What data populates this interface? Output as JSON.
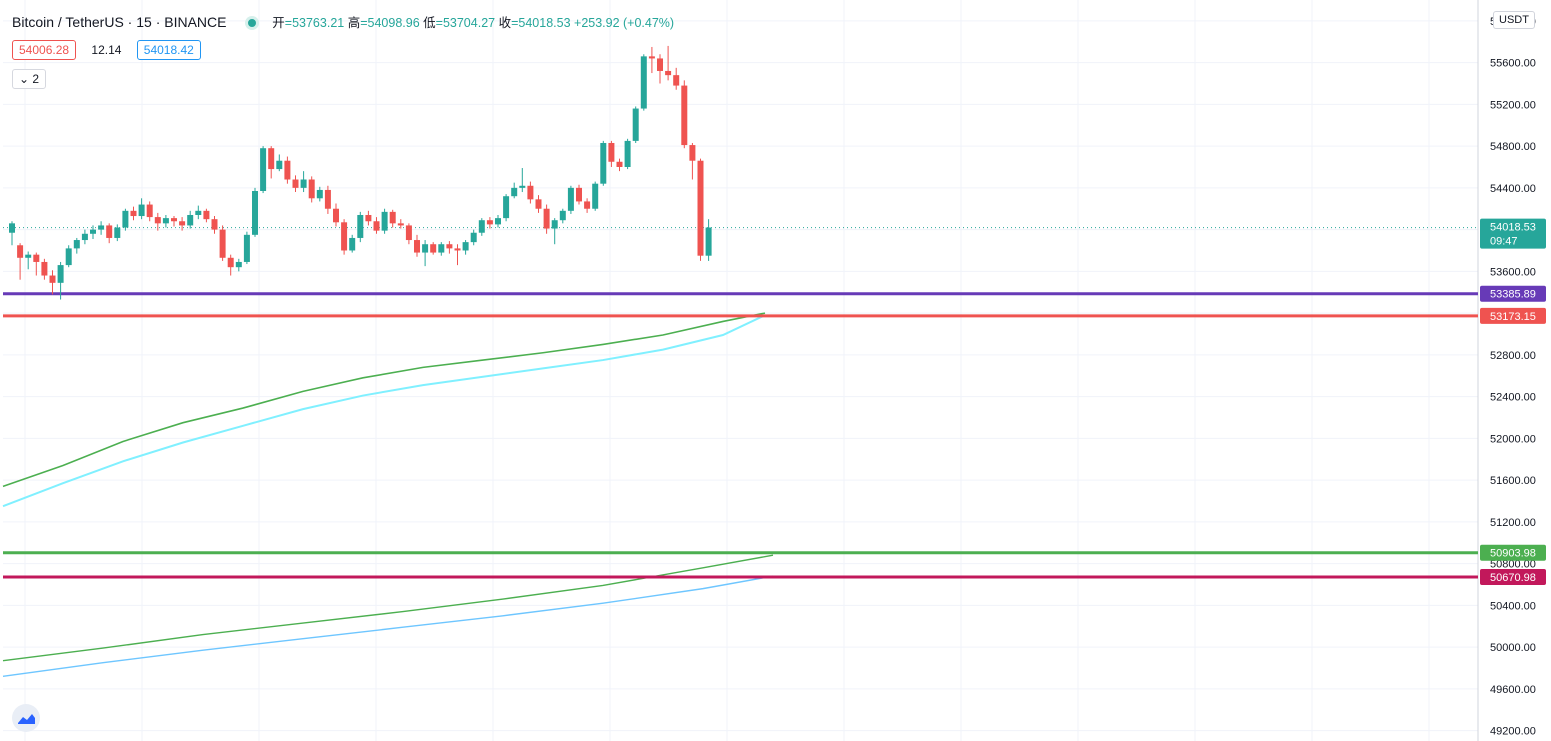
{
  "header": {
    "symbol": "Bitcoin / TetherUS · 15 · BINANCE",
    "open_label": "开",
    "open": "=53763.21",
    "high_label": "高",
    "high": "=54098.96",
    "low_label": "低",
    "low": "=53704.27",
    "close_label": "收",
    "close": "=54018.53",
    "change": "+253.92 (+0.47%)"
  },
  "quote": {
    "bid": "54006.28",
    "spread": "12.14",
    "ask": "54018.42"
  },
  "indicators_toggle": "2",
  "currency": "USDT",
  "colors": {
    "up": "#26a69a",
    "down": "#ef5350",
    "grid": "#f0f3fa",
    "ema_green": "#4caf50",
    "ema_cyan": "#80f0ff",
    "ma_blue": "#6ec6ff",
    "line_purple": "#673ab7",
    "line_red": "#ef5350",
    "line_green": "#4caf50",
    "line_magenta": "#c2185b"
  },
  "chart_data": {
    "type": "candlestick",
    "ylim": [
      49100,
      56200
    ],
    "y_ticks": [
      49200,
      49600,
      50000,
      50400,
      50800,
      51200,
      51600,
      52000,
      52400,
      52800,
      53200,
      53600,
      54000,
      54400,
      54800,
      55200,
      55600,
      56000
    ],
    "candles": [
      [
        53970,
        54060,
        53850,
        54080
      ],
      [
        53850,
        53730,
        53520,
        53870
      ],
      [
        53730,
        53760,
        53620,
        53790
      ],
      [
        53760,
        53690,
        53560,
        53780
      ],
      [
        53690,
        53560,
        53520,
        53720
      ],
      [
        53560,
        53490,
        53380,
        53610
      ],
      [
        53490,
        53660,
        53330,
        53690
      ],
      [
        53660,
        53820,
        53640,
        53850
      ],
      [
        53820,
        53900,
        53770,
        53920
      ],
      [
        53900,
        53960,
        53860,
        54000
      ],
      [
        53960,
        54000,
        53910,
        54040
      ],
      [
        54000,
        54040,
        53950,
        54080
      ],
      [
        54040,
        53920,
        53870,
        54060
      ],
      [
        53920,
        54020,
        53890,
        54050
      ],
      [
        54020,
        54180,
        53990,
        54200
      ],
      [
        54180,
        54130,
        54090,
        54220
      ],
      [
        54130,
        54240,
        54100,
        54300
      ],
      [
        54240,
        54120,
        54080,
        54270
      ],
      [
        54120,
        54060,
        53990,
        54160
      ],
      [
        54060,
        54110,
        54020,
        54140
      ],
      [
        54110,
        54080,
        54030,
        54130
      ],
      [
        54080,
        54040,
        53990,
        54120
      ],
      [
        54040,
        54140,
        54010,
        54180
      ],
      [
        54140,
        54180,
        54100,
        54230
      ],
      [
        54180,
        54100,
        54070,
        54200
      ],
      [
        54100,
        54000,
        53960,
        54130
      ],
      [
        54000,
        53730,
        53700,
        54040
      ],
      [
        53730,
        53640,
        53560,
        53760
      ],
      [
        53640,
        53690,
        53600,
        53720
      ],
      [
        53690,
        53950,
        53670,
        53980
      ],
      [
        53950,
        54370,
        53930,
        54400
      ],
      [
        54370,
        54780,
        54350,
        54800
      ],
      [
        54780,
        54580,
        54490,
        54800
      ],
      [
        54580,
        54660,
        54560,
        54720
      ],
      [
        54660,
        54480,
        54440,
        54700
      ],
      [
        54480,
        54400,
        54360,
        54520
      ],
      [
        54400,
        54480,
        54360,
        54560
      ],
      [
        54480,
        54300,
        54260,
        54510
      ],
      [
        54300,
        54380,
        54270,
        54410
      ],
      [
        54380,
        54200,
        54150,
        54420
      ],
      [
        54200,
        54070,
        54030,
        54250
      ],
      [
        54070,
        53800,
        53760,
        54100
      ],
      [
        53800,
        53920,
        53780,
        53950
      ],
      [
        53920,
        54140,
        53880,
        54170
      ],
      [
        54140,
        54080,
        54040,
        54180
      ],
      [
        54080,
        53990,
        53960,
        54120
      ],
      [
        53990,
        54170,
        53960,
        54200
      ],
      [
        54170,
        54060,
        54020,
        54190
      ],
      [
        54060,
        54040,
        54010,
        54100
      ],
      [
        54040,
        53900,
        53860,
        54060
      ],
      [
        53900,
        53780,
        53740,
        53950
      ],
      [
        53780,
        53860,
        53650,
        53900
      ],
      [
        53860,
        53780,
        53760,
        53880
      ],
      [
        53780,
        53860,
        53750,
        53880
      ],
      [
        53860,
        53820,
        53770,
        53890
      ],
      [
        53820,
        53800,
        53660,
        53860
      ],
      [
        53800,
        53880,
        53760,
        53900
      ],
      [
        53880,
        53970,
        53850,
        54000
      ],
      [
        53970,
        54090,
        53940,
        54110
      ],
      [
        54090,
        54050,
        54010,
        54120
      ],
      [
        54050,
        54110,
        54020,
        54140
      ],
      [
        54110,
        54320,
        54080,
        54340
      ],
      [
        54320,
        54400,
        54300,
        54450
      ],
      [
        54400,
        54420,
        54360,
        54590
      ],
      [
        54420,
        54290,
        54250,
        54460
      ],
      [
        54290,
        54200,
        54160,
        54330
      ],
      [
        54200,
        54010,
        53960,
        54240
      ],
      [
        54010,
        54090,
        53860,
        54110
      ],
      [
        54090,
        54180,
        54060,
        54200
      ],
      [
        54180,
        54400,
        54150,
        54420
      ],
      [
        54400,
        54270,
        54240,
        54430
      ],
      [
        54270,
        54200,
        54160,
        54300
      ],
      [
        54200,
        54440,
        54180,
        54460
      ],
      [
        54440,
        54830,
        54420,
        54850
      ],
      [
        54830,
        54650,
        54600,
        54850
      ],
      [
        54650,
        54600,
        54560,
        54680
      ],
      [
        54600,
        54850,
        54580,
        54870
      ],
      [
        54850,
        55160,
        54830,
        55180
      ],
      [
        55160,
        55660,
        55140,
        55680
      ],
      [
        55660,
        55640,
        55500,
        55750
      ],
      [
        55640,
        55520,
        55400,
        55680
      ],
      [
        55520,
        55480,
        55430,
        55760
      ],
      [
        55480,
        55380,
        55340,
        55550
      ],
      [
        55380,
        54810,
        54780,
        55430
      ],
      [
        54810,
        54660,
        54480,
        54830
      ],
      [
        54660,
        53750,
        53700,
        54680
      ],
      [
        53750,
        54020,
        53700,
        54100
      ]
    ],
    "ema_green": [
      [
        0,
        51540
      ],
      [
        60,
        51740
      ],
      [
        120,
        51970
      ],
      [
        180,
        52150
      ],
      [
        240,
        52290
      ],
      [
        300,
        52450
      ],
      [
        360,
        52580
      ],
      [
        420,
        52680
      ],
      [
        480,
        52750
      ],
      [
        540,
        52820
      ],
      [
        600,
        52900
      ],
      [
        660,
        52990
      ],
      [
        720,
        53120
      ],
      [
        762,
        53200
      ]
    ],
    "ema_cyan": [
      [
        0,
        51350
      ],
      [
        60,
        51570
      ],
      [
        120,
        51780
      ],
      [
        180,
        51960
      ],
      [
        240,
        52120
      ],
      [
        300,
        52280
      ],
      [
        360,
        52410
      ],
      [
        420,
        52510
      ],
      [
        480,
        52590
      ],
      [
        540,
        52670
      ],
      [
        600,
        52750
      ],
      [
        660,
        52850
      ],
      [
        720,
        52990
      ],
      [
        762,
        53180
      ]
    ],
    "ma_green": [
      [
        0,
        49870
      ],
      [
        100,
        49990
      ],
      [
        200,
        50120
      ],
      [
        300,
        50230
      ],
      [
        400,
        50340
      ],
      [
        500,
        50460
      ],
      [
        600,
        50590
      ],
      [
        700,
        50760
      ],
      [
        770,
        50880
      ]
    ],
    "ma_blue": [
      [
        0,
        49720
      ],
      [
        100,
        49850
      ],
      [
        200,
        49970
      ],
      [
        300,
        50080
      ],
      [
        400,
        50190
      ],
      [
        500,
        50300
      ],
      [
        600,
        50420
      ],
      [
        700,
        50560
      ],
      [
        770,
        50680
      ]
    ],
    "last_price": "54018.53",
    "countdown": "09:47",
    "levels": [
      {
        "value": 53385.89,
        "label": "53385.89",
        "color": "#673ab7"
      },
      {
        "value": 53173.15,
        "label": "53173.15",
        "color": "#ef5350"
      },
      {
        "value": 50903.98,
        "label": "50903.98",
        "color": "#4caf50"
      },
      {
        "value": 50670.98,
        "label": "50670.98",
        "color": "#c2185b"
      }
    ]
  }
}
